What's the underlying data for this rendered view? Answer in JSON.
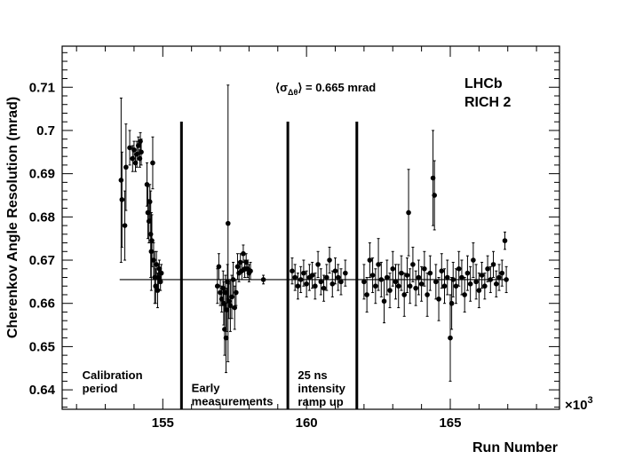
{
  "chart_data": {
    "type": "scatter",
    "xlabel": "Run Number",
    "ylabel": "Cherenkov Angle Resolution  (mrad)",
    "x_multiplier_label": "×10",
    "x_multiplier_exp": "3",
    "xlim": [
      151.5,
      168.8
    ],
    "ylim": [
      0.6355,
      0.7195
    ],
    "x_ticks": [
      155,
      160,
      165
    ],
    "x_tick_labels": [
      "155",
      "160",
      "165"
    ],
    "y_ticks": [
      0.64,
      0.65,
      0.66,
      0.67,
      0.68,
      0.69,
      0.7,
      0.71
    ],
    "y_tick_labels": [
      "0.64",
      "0.65",
      "0.66",
      "0.67",
      "0.68",
      "0.69",
      "0.7",
      "0.71"
    ],
    "mean": {
      "value": 0.6655,
      "x_start": 153.5,
      "x_end": 167.0,
      "label_prefix": "⟨σ",
      "label_sub": "Δθ",
      "label_suffix": "⟩ = 0.665 mrad"
    },
    "experiment_label": [
      "LHCb",
      "RICH 2"
    ],
    "period_dividers": [
      155.65,
      159.35,
      161.75
    ],
    "period_labels": [
      {
        "lines": [
          "Calibration",
          "period"
        ],
        "x": 152.2,
        "y": 0.6425
      },
      {
        "lines": [
          "Early",
          "measurements"
        ],
        "x": 156.0,
        "y": 0.6395
      },
      {
        "lines": [
          "25 ns",
          "intensity",
          "ramp up"
        ],
        "x": 159.7,
        "y": 0.6425
      }
    ],
    "series": [
      {
        "points": [
          [
            153.55,
            0.6885,
            0.019
          ],
          [
            153.58,
            0.684,
            0.011
          ],
          [
            153.68,
            0.678,
            0.008
          ],
          [
            153.72,
            0.6915,
            0.01
          ],
          [
            153.85,
            0.696,
            0.004
          ],
          [
            153.95,
            0.6935,
            0.003
          ],
          [
            154.0,
            0.6955,
            0.002
          ],
          [
            154.05,
            0.6925,
            0.002
          ],
          [
            154.1,
            0.6945,
            0.003
          ],
          [
            154.15,
            0.6965,
            0.002
          ],
          [
            154.2,
            0.6935,
            0.002
          ],
          [
            154.22,
            0.6975,
            0.002
          ],
          [
            154.25,
            0.695,
            0.003
          ],
          [
            154.45,
            0.6875,
            0.005
          ],
          [
            154.48,
            0.681,
            0.006
          ],
          [
            154.52,
            0.679,
            0.005
          ],
          [
            154.55,
            0.6835,
            0.004
          ],
          [
            154.58,
            0.676,
            0.01
          ],
          [
            154.6,
            0.672,
            0.009
          ],
          [
            154.62,
            0.6745,
            0.006
          ],
          [
            154.65,
            0.6925,
            0.006
          ],
          [
            154.68,
            0.67,
            0.004
          ],
          [
            154.72,
            0.666,
            0.006
          ],
          [
            154.75,
            0.664,
            0.004
          ],
          [
            154.78,
            0.669,
            0.003
          ],
          [
            154.82,
            0.663,
            0.004
          ],
          [
            154.85,
            0.666,
            0.003
          ],
          [
            154.88,
            0.668,
            0.002
          ],
          [
            154.92,
            0.665,
            0.002
          ],
          [
            154.95,
            0.667,
            0.002
          ],
          [
            156.9,
            0.664,
            0.004
          ],
          [
            156.95,
            0.6685,
            0.003
          ],
          [
            157.0,
            0.6625,
            0.003
          ],
          [
            157.05,
            0.661,
            0.003
          ],
          [
            157.1,
            0.6635,
            0.004
          ],
          [
            157.12,
            0.66,
            0.005
          ],
          [
            157.15,
            0.654,
            0.006
          ],
          [
            157.18,
            0.6625,
            0.004
          ],
          [
            157.2,
            0.652,
            0.008
          ],
          [
            157.22,
            0.6585,
            0.005
          ],
          [
            157.25,
            0.665,
            0.004
          ],
          [
            157.27,
            0.6785,
            0.032
          ],
          [
            157.3,
            0.6605,
            0.004
          ],
          [
            157.35,
            0.6595,
            0.006
          ],
          [
            157.4,
            0.6615,
            0.005
          ],
          [
            157.45,
            0.6655,
            0.004
          ],
          [
            157.5,
            0.659,
            0.005
          ],
          [
            157.55,
            0.6625,
            0.003
          ],
          [
            157.6,
            0.6685,
            0.003
          ],
          [
            157.65,
            0.667,
            0.002
          ],
          [
            157.7,
            0.6695,
            0.002
          ],
          [
            157.75,
            0.6675,
            0.002
          ],
          [
            157.8,
            0.6715,
            0.002
          ],
          [
            157.85,
            0.668,
            0.002
          ],
          [
            157.9,
            0.6695,
            0.002
          ],
          [
            157.95,
            0.668,
            0.002
          ],
          [
            158.0,
            0.667,
            0.002
          ],
          [
            158.05,
            0.6675,
            0.002
          ],
          [
            158.5,
            0.6655,
            0.001
          ],
          [
            159.5,
            0.6675,
            0.003
          ],
          [
            159.6,
            0.666,
            0.003
          ],
          [
            159.7,
            0.664,
            0.003
          ],
          [
            159.8,
            0.6655,
            0.003
          ],
          [
            159.9,
            0.667,
            0.003
          ],
          [
            160.0,
            0.6645,
            0.003
          ],
          [
            160.1,
            0.666,
            0.003
          ],
          [
            160.2,
            0.6665,
            0.003
          ],
          [
            160.3,
            0.664,
            0.003
          ],
          [
            160.4,
            0.669,
            0.003
          ],
          [
            160.5,
            0.665,
            0.003
          ],
          [
            160.6,
            0.6635,
            0.003
          ],
          [
            160.7,
            0.666,
            0.003
          ],
          [
            160.8,
            0.67,
            0.003
          ],
          [
            160.9,
            0.6645,
            0.003
          ],
          [
            161.0,
            0.6675,
            0.003
          ],
          [
            161.1,
            0.666,
            0.003
          ],
          [
            161.2,
            0.665,
            0.003
          ],
          [
            161.35,
            0.667,
            0.003
          ],
          [
            162.0,
            0.665,
            0.004
          ],
          [
            162.1,
            0.662,
            0.004
          ],
          [
            162.2,
            0.67,
            0.004
          ],
          [
            162.3,
            0.6665,
            0.004
          ],
          [
            162.4,
            0.664,
            0.004
          ],
          [
            162.5,
            0.669,
            0.006
          ],
          [
            162.6,
            0.6655,
            0.004
          ],
          [
            162.7,
            0.6605,
            0.005
          ],
          [
            162.8,
            0.666,
            0.004
          ],
          [
            162.9,
            0.663,
            0.004
          ],
          [
            163.0,
            0.668,
            0.004
          ],
          [
            163.1,
            0.665,
            0.004
          ],
          [
            163.2,
            0.664,
            0.005
          ],
          [
            163.3,
            0.667,
            0.004
          ],
          [
            163.4,
            0.662,
            0.005
          ],
          [
            163.5,
            0.6665,
            0.004
          ],
          [
            163.55,
            0.681,
            0.01
          ],
          [
            163.6,
            0.664,
            0.004
          ],
          [
            163.7,
            0.669,
            0.004
          ],
          [
            163.8,
            0.6635,
            0.004
          ],
          [
            163.9,
            0.666,
            0.004
          ],
          [
            164.0,
            0.6645,
            0.004
          ],
          [
            164.1,
            0.668,
            0.004
          ],
          [
            164.2,
            0.662,
            0.005
          ],
          [
            164.3,
            0.667,
            0.004
          ],
          [
            164.4,
            0.689,
            0.011
          ],
          [
            164.45,
            0.685,
            0.008
          ],
          [
            164.5,
            0.665,
            0.004
          ],
          [
            164.6,
            0.661,
            0.005
          ],
          [
            164.7,
            0.6675,
            0.004
          ],
          [
            164.8,
            0.664,
            0.004
          ],
          [
            164.9,
            0.666,
            0.004
          ],
          [
            165.0,
            0.652,
            0.01
          ],
          [
            165.05,
            0.66,
            0.006
          ],
          [
            165.1,
            0.6655,
            0.004
          ],
          [
            165.2,
            0.664,
            0.004
          ],
          [
            165.3,
            0.668,
            0.004
          ],
          [
            165.4,
            0.666,
            0.004
          ],
          [
            165.5,
            0.662,
            0.004
          ],
          [
            165.6,
            0.667,
            0.004
          ],
          [
            165.7,
            0.6645,
            0.004
          ],
          [
            165.8,
            0.67,
            0.004
          ],
          [
            165.9,
            0.665,
            0.004
          ],
          [
            166.0,
            0.663,
            0.004
          ],
          [
            166.1,
            0.6665,
            0.003
          ],
          [
            166.2,
            0.664,
            0.003
          ],
          [
            166.3,
            0.668,
            0.003
          ],
          [
            166.4,
            0.6655,
            0.003
          ],
          [
            166.5,
            0.669,
            0.003
          ],
          [
            166.6,
            0.6645,
            0.003
          ],
          [
            166.7,
            0.666,
            0.003
          ],
          [
            166.8,
            0.667,
            0.003
          ],
          [
            166.9,
            0.6745,
            0.002
          ],
          [
            166.95,
            0.6655,
            0.003
          ]
        ]
      }
    ]
  }
}
